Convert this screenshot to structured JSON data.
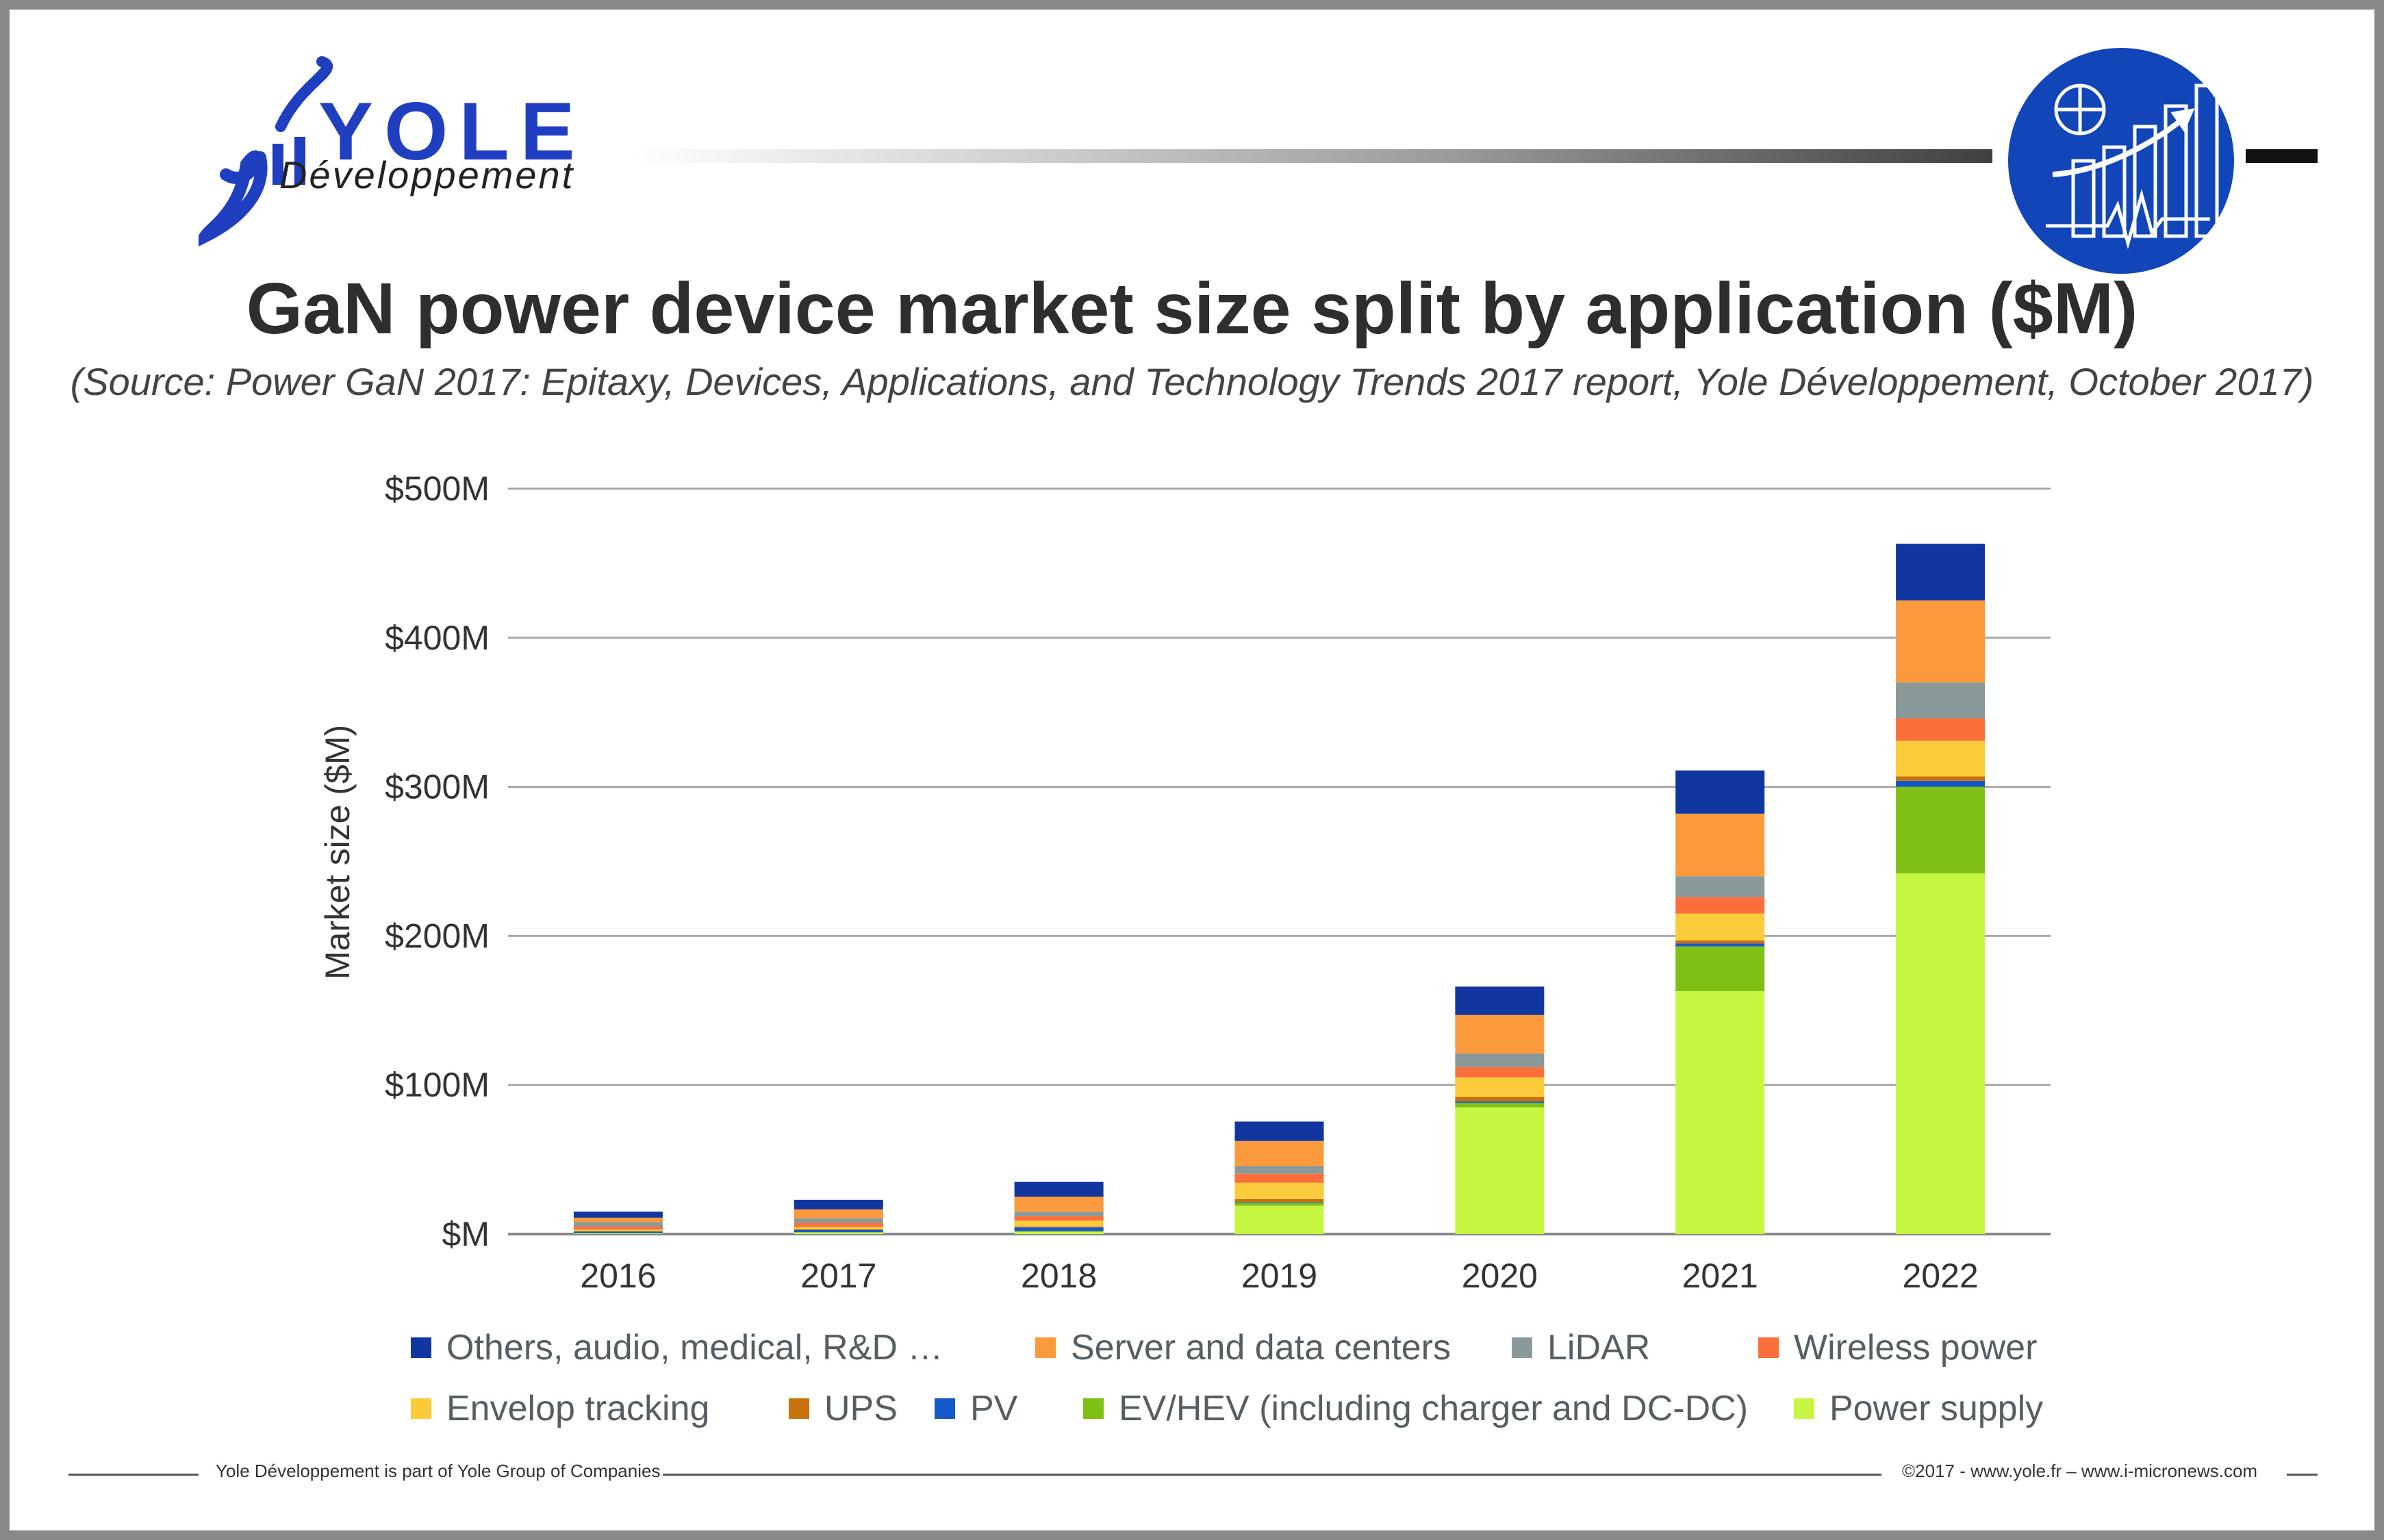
{
  "brand": {
    "logo_text": "YOLE",
    "logo_subtext": "Développement",
    "colors": {
      "brand_blue": "#1f3fc0",
      "badge_blue": "#1245b8"
    },
    "badge_icon": "market-growth-chart-icon"
  },
  "header": {
    "title": "GaN power device market size split by application ($M)",
    "subtitle": "(Source: Power GaN 2017: Epitaxy, Devices, Applications, and Technology Trends 2017 report, Yole Développement, October 2017)"
  },
  "chart_data": {
    "type": "bar",
    "stacked": true,
    "categories": [
      "2016",
      "2017",
      "2018",
      "2019",
      "2020",
      "2021",
      "2022"
    ],
    "ylabel": "Market size ($M)",
    "xlabel": "",
    "ylim": [
      0,
      500
    ],
    "yticks": [
      {
        "value": 0,
        "label": "$M"
      },
      {
        "value": 100,
        "label": "$100M"
      },
      {
        "value": 200,
        "label": "$200M"
      },
      {
        "value": 300,
        "label": "$300M"
      },
      {
        "value": 400,
        "label": "$400M"
      },
      {
        "value": 500,
        "label": "$500M"
      }
    ],
    "grid": true,
    "legend_position": "bottom",
    "series": [
      {
        "name": "Power supply",
        "color": "#c6f542",
        "values": [
          0.5,
          1,
          1.5,
          19,
          85,
          163,
          242
        ]
      },
      {
        "name": "EV/HEV (including charger and DC-DC)",
        "color": "#7fbf16",
        "values": [
          0.2,
          0.3,
          0.5,
          2,
          3,
          30,
          58
        ]
      },
      {
        "name": "PV",
        "color": "#1357c9",
        "values": [
          1,
          1.5,
          2.5,
          0.5,
          1,
          2,
          4
        ]
      },
      {
        "name": "UPS",
        "color": "#c8720e",
        "values": [
          0.3,
          0.5,
          0.5,
          2,
          3,
          2,
          3
        ]
      },
      {
        "name": "Envelop tracking",
        "color": "#fccb3b",
        "values": [
          1,
          1.5,
          4,
          11,
          13,
          18,
          24
        ]
      },
      {
        "name": "Wireless power",
        "color": "#fb6f3a",
        "values": [
          2,
          2.7,
          3,
          6,
          7,
          11,
          15
        ]
      },
      {
        "name": "LiDAR",
        "color": "#8a9a9a",
        "values": [
          3,
          3,
          3,
          5,
          9,
          14,
          24
        ]
      },
      {
        "name": "Server and data centers",
        "color": "#fb9a3c",
        "values": [
          3,
          6,
          10,
          17,
          26,
          42,
          55
        ]
      },
      {
        "name": "Others, audio, medical, R&D …",
        "color": "#1236a0",
        "values": [
          4,
          6.5,
          10,
          13,
          19,
          29,
          38
        ]
      }
    ],
    "legend_order": [
      "Others, audio, medical, R&D …",
      "Server and data centers",
      "LiDAR",
      "Wireless power",
      "Envelop tracking",
      "UPS",
      "PV",
      "EV/HEV (including charger and DC-DC)",
      "Power supply"
    ]
  },
  "footer": {
    "left": "Yole Développement is part of Yole Group of Companies",
    "right": "©2017 - www.yole.fr – www.i-micronews.com"
  }
}
